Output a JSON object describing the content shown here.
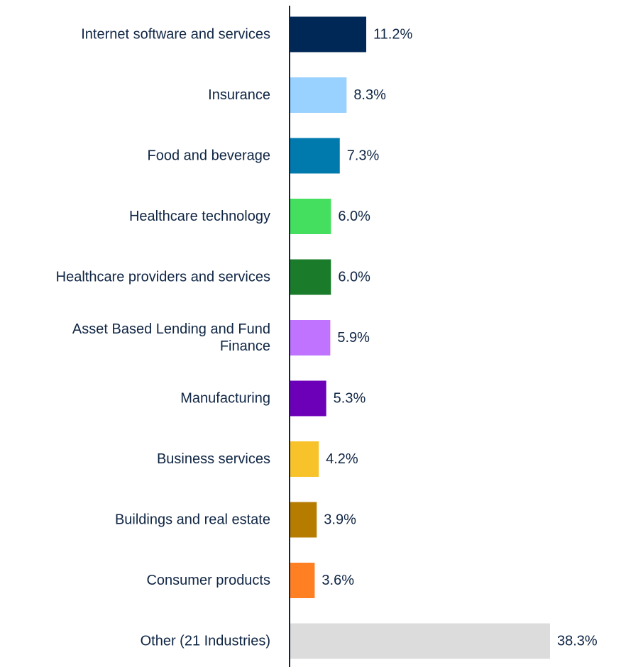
{
  "chart_data": {
    "type": "bar",
    "orientation": "horizontal",
    "title": "",
    "xlabel": "",
    "ylabel": "",
    "xlim": [
      0,
      38.3
    ],
    "grid": false,
    "legend": "none",
    "categories": [
      "Internet software and services",
      "Insurance",
      "Food and beverage",
      "Healthcare technology",
      "Healthcare providers and services",
      "Asset Based Lending and Fund Finance",
      "Manufacturing",
      "Business services",
      "Buildings and real estate",
      "Consumer products",
      "Other (21 Industries)"
    ],
    "values": [
      11.2,
      8.3,
      7.3,
      6.0,
      6.0,
      5.9,
      5.3,
      4.2,
      3.9,
      3.6,
      38.3
    ],
    "value_labels": [
      "11.2%",
      "8.3%",
      "7.3%",
      "6.0%",
      "6.0%",
      "5.9%",
      "5.3%",
      "4.2%",
      "3.9%",
      "3.6%",
      "38.3%"
    ],
    "colors": [
      "#002856",
      "#99d1ff",
      "#007aad",
      "#45df5f",
      "#1a7c2b",
      "#bf73ff",
      "#6b00b8",
      "#f8c22a",
      "#b57c00",
      "#ff8023",
      "#dcdcdc"
    ],
    "axis_color": "#0f2544"
  }
}
